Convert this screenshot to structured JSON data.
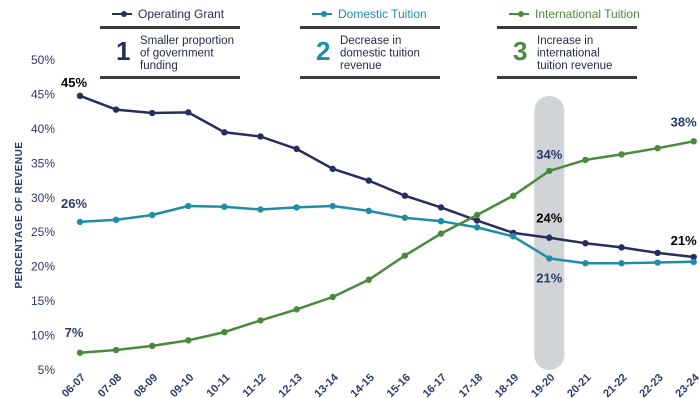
{
  "chart_data": {
    "type": "line",
    "categories": [
      "06-07",
      "07-08",
      "08-09",
      "09-10",
      "10-11",
      "11-12",
      "12-13",
      "13-14",
      "14-15",
      "15-16",
      "16-17",
      "17-18",
      "18-19",
      "19-20",
      "20-21",
      "21-22",
      "22-23",
      "23-24"
    ],
    "ylabel": "PERCENTAGE OF REVENUE",
    "ylim": [
      5,
      50
    ],
    "yticks": [
      "5%",
      "10%",
      "15%",
      "20%",
      "25%",
      "30%",
      "35%",
      "40%",
      "45%",
      "50%"
    ],
    "grid": false,
    "legend_position": "top",
    "series": [
      {
        "name": "Operating Grant",
        "color": "#262e5e",
        "values": [
          44.8,
          42.8,
          42.3,
          42.4,
          39.5,
          38.9,
          37.1,
          34.2,
          32.5,
          30.3,
          28.6,
          26.7,
          24.9,
          24.2,
          23.4,
          22.8,
          22.0,
          21.4
        ]
      },
      {
        "name": "Domestic Tuition",
        "color": "#1e8ea8",
        "values": [
          26.5,
          26.8,
          27.5,
          28.8,
          28.7,
          28.3,
          28.6,
          28.8,
          28.1,
          27.1,
          26.6,
          25.7,
          24.4,
          21.2,
          20.5,
          20.5,
          20.6,
          20.7
        ]
      },
      {
        "name": "International Tuition",
        "color": "#4a8a3b",
        "values": [
          7.5,
          7.9,
          8.5,
          9.3,
          10.5,
          12.2,
          13.8,
          15.6,
          18.1,
          21.6,
          24.8,
          27.5,
          30.3,
          33.9,
          35.5,
          36.3,
          37.2,
          38.2
        ]
      }
    ],
    "annotations": [
      {
        "text": "45%",
        "series": 0,
        "index": 0
      },
      {
        "text": "21%",
        "series": 0,
        "index": 17
      },
      {
        "text": "24%",
        "series": 0,
        "index": 13
      },
      {
        "text": "26%",
        "series": 1,
        "index": 0
      },
      {
        "text": "21%",
        "series": 1,
        "index": 13
      },
      {
        "text": "7%",
        "series": 2,
        "index": 0
      },
      {
        "text": "34%",
        "series": 2,
        "index": 13
      },
      {
        "text": "38%",
        "series": 2,
        "index": 17
      }
    ],
    "highlight_category": "19-20"
  },
  "callouts": [
    {
      "number": "1",
      "lines": [
        "Smaller proportion",
        "of government",
        "funding"
      ],
      "color": "#262e5e"
    },
    {
      "number": "2",
      "lines": [
        "Decrease in",
        "domestic tuition",
        "revenue"
      ],
      "color": "#1e8ea8"
    },
    {
      "number": "3",
      "lines": [
        "Increase in",
        "international",
        "tuition revenue"
      ],
      "color": "#4a8a3b"
    }
  ]
}
